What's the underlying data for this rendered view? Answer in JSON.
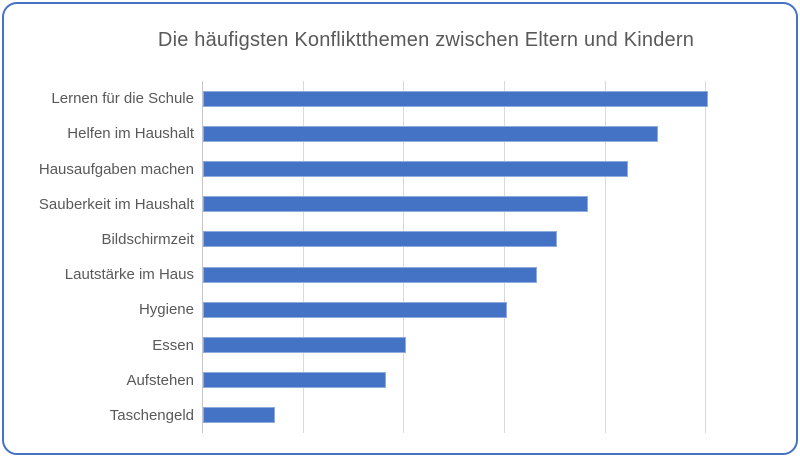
{
  "title": "Die häufigsten Konfliktthemen zwischen Eltern und Kindern",
  "chart_data": {
    "type": "bar",
    "orientation": "horizontal",
    "title": "Die häufigsten Konfliktthemen zwischen Eltern und Kindern",
    "categories": [
      "Lernen für die Schule",
      "Helfen im Haushalt",
      "Hausaufgaben machen",
      "Sauberkeit im Haushalt",
      "Bildschirmzeit",
      "Lautstärke im Haus",
      "Hygiene",
      "Essen",
      "Aufstehen",
      "Taschengeld"
    ],
    "values": [
      50,
      45,
      42,
      38,
      35,
      33,
      30,
      20,
      18,
      7
    ],
    "xlabel": "",
    "ylabel": "",
    "xlim": [
      0,
      60
    ],
    "gridline_interval": 10,
    "grid": "vertical-only",
    "tick_labels_visible": false,
    "data_labels_visible": false,
    "legend": "none",
    "colors": {
      "bar_fill": "#4472C4",
      "bar_border": "#8FAADC",
      "gridline": "#D9D9D9",
      "axis_line": "#C6C6C6",
      "text": "#595959",
      "card_border": "#4472C4",
      "background": "#FFFFFF"
    }
  }
}
